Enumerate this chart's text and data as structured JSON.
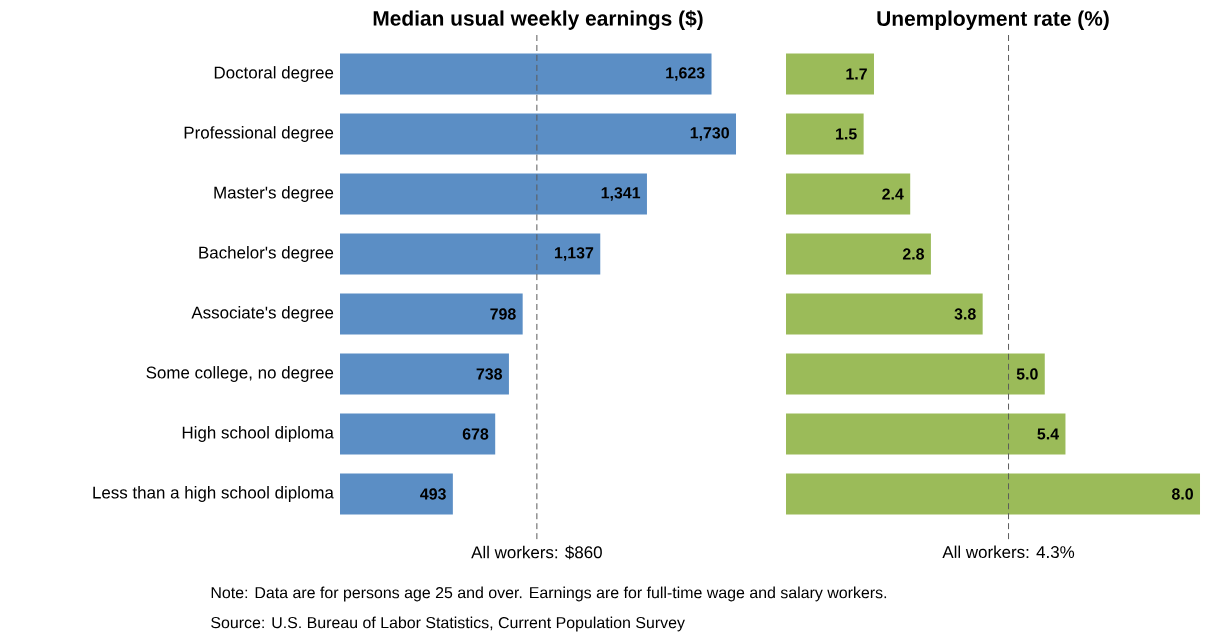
{
  "chart_data": [
    {
      "type": "bar",
      "orientation": "horizontal",
      "title": "Median usual weekly earnings ($)",
      "color": "#5b8ec5",
      "categories": [
        "Doctoral degree",
        "Professional degree",
        "Master's degree",
        "Bachelor's degree",
        "Associate's degree",
        "Some college, no degree",
        "High school diploma",
        "Less than a high school diploma"
      ],
      "values": [
        1623,
        1730,
        1341,
        1137,
        798,
        738,
        678,
        493
      ],
      "value_labels": [
        "1,623",
        "1,730",
        "1,341",
        "1,137",
        "798",
        "738",
        "678",
        "493"
      ],
      "ref_lines": [
        {
          "axis": "x",
          "value": 860,
          "label": "All workers: $860"
        }
      ],
      "annotations": [
        "Note: Data are for persons age 25 and over. Earnings are for full-time wage and salary workers.",
        "Source: U.S. Bureau of Labor Statistics, Current Population Survey"
      ]
    },
    {
      "type": "bar",
      "orientation": "horizontal",
      "title": "Unemployment rate (%)",
      "color": "#9bbb59",
      "categories": [
        null,
        null,
        null,
        null,
        null,
        null,
        null,
        null
      ],
      "values": [
        1.7,
        1.5,
        2.4,
        2.8,
        3.8,
        5.0,
        5.4,
        8.0
      ],
      "value_labels": [
        "1.7",
        "1.5",
        "2.4",
        "2.8",
        "3.8",
        "5.0",
        "5.4",
        "8.0"
      ],
      "ref_lines": [
        {
          "axis": "x",
          "value": 4.3,
          "label": "All workers: 4.3%"
        }
      ]
    }
  ]
}
